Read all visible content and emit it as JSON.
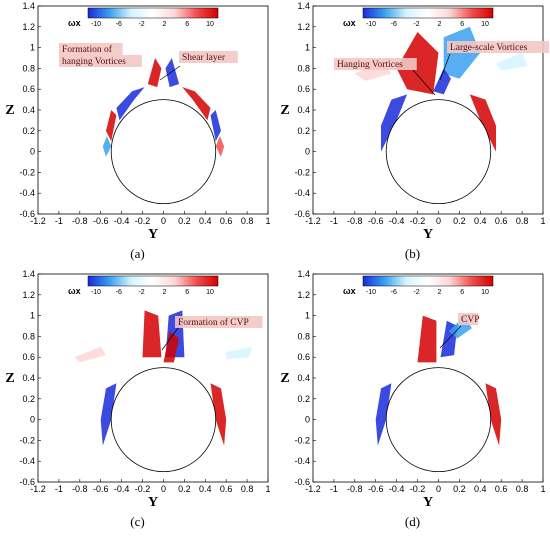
{
  "panels": [
    {
      "id": "a",
      "caption": "(a)",
      "annotations": [
        "Formation of",
        "hanging Vortices",
        "Shear layer"
      ]
    },
    {
      "id": "b",
      "caption": "(b)",
      "annotations": [
        "Hanging Vortices",
        "Large-scale Vortices"
      ]
    },
    {
      "id": "c",
      "caption": "(c)",
      "annotations": [
        "Formation of  CVP"
      ]
    },
    {
      "id": "d",
      "caption": "(d)",
      "annotations": [
        "CVP"
      ]
    }
  ],
  "axes": {
    "xlabel": "Y",
    "ylabel": "Z",
    "xticks": [
      "-1.2",
      "-1",
      "-0.8",
      "-0.6",
      "-0.4",
      "-0.2",
      "0",
      "0.2",
      "0.4",
      "0.6",
      "0.8",
      "1"
    ],
    "yticks": [
      "1.4",
      "1.2",
      "1",
      "0.8",
      "0.6",
      "0.4",
      "0.2",
      "0",
      "-0.2",
      "-0.4",
      "-0.6"
    ]
  },
  "colorbar": {
    "label": "ωx",
    "ticks": [
      "-10",
      "-6",
      "-2",
      "2",
      "6",
      "10"
    ],
    "colors": [
      "#1a2bd9",
      "#3aa0f0",
      "#d6f4ff",
      "#ffffff",
      "#ffd6d6",
      "#f05050",
      "#d40000"
    ]
  }
}
